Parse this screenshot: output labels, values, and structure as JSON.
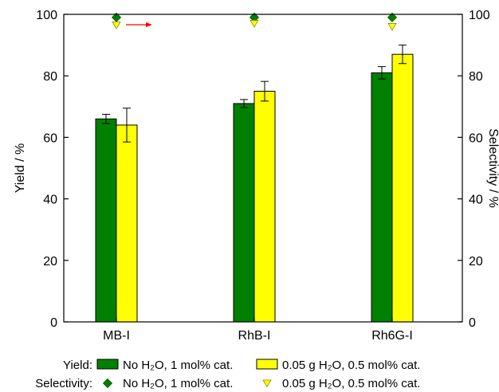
{
  "chart_data": {
    "type": "bar",
    "categories": [
      "MB-I",
      "RhB-I",
      "Rh6G-I"
    ],
    "xlabel": "",
    "ylabel": "Yield / %",
    "y2label": "Selectivity / %",
    "ylim": [
      0,
      100
    ],
    "y2lim": [
      0,
      100
    ],
    "yticks": [
      0,
      20,
      40,
      60,
      80,
      100
    ],
    "grid": false,
    "series": [
      {
        "key": "yield_no_water",
        "axis": "Yield",
        "kind": "bar",
        "name": "No H₂O, 1 mol% cat.",
        "color": "#008000",
        "values": [
          66,
          71,
          81
        ],
        "errors": [
          1.5,
          1.3,
          2.0
        ]
      },
      {
        "key": "yield_water",
        "axis": "Yield",
        "kind": "bar",
        "name": "0.05 g H₂O, 0.5 mol% cat.",
        "color": "#ffff00",
        "values": [
          64,
          75,
          87
        ],
        "errors": [
          5.5,
          3.2,
          3.0
        ]
      },
      {
        "key": "sel_no_water",
        "axis": "Selectivity",
        "kind": "diamond",
        "name": "No H₂O, 1 mol% cat.",
        "color": "#008000",
        "values": [
          99,
          99,
          99
        ]
      },
      {
        "key": "sel_water",
        "axis": "Selectivity",
        "kind": "triangle-down",
        "name": "0.05 g H₂O, 0.5 mol% cat.",
        "color": "#ffff00",
        "values": [
          96.5,
          97,
          96
        ]
      }
    ],
    "arrow_color": "#ff0000",
    "legend": {
      "placement": "bottom",
      "yield_label": "Yield:",
      "selectivity_label": "Selectivity:"
    }
  }
}
